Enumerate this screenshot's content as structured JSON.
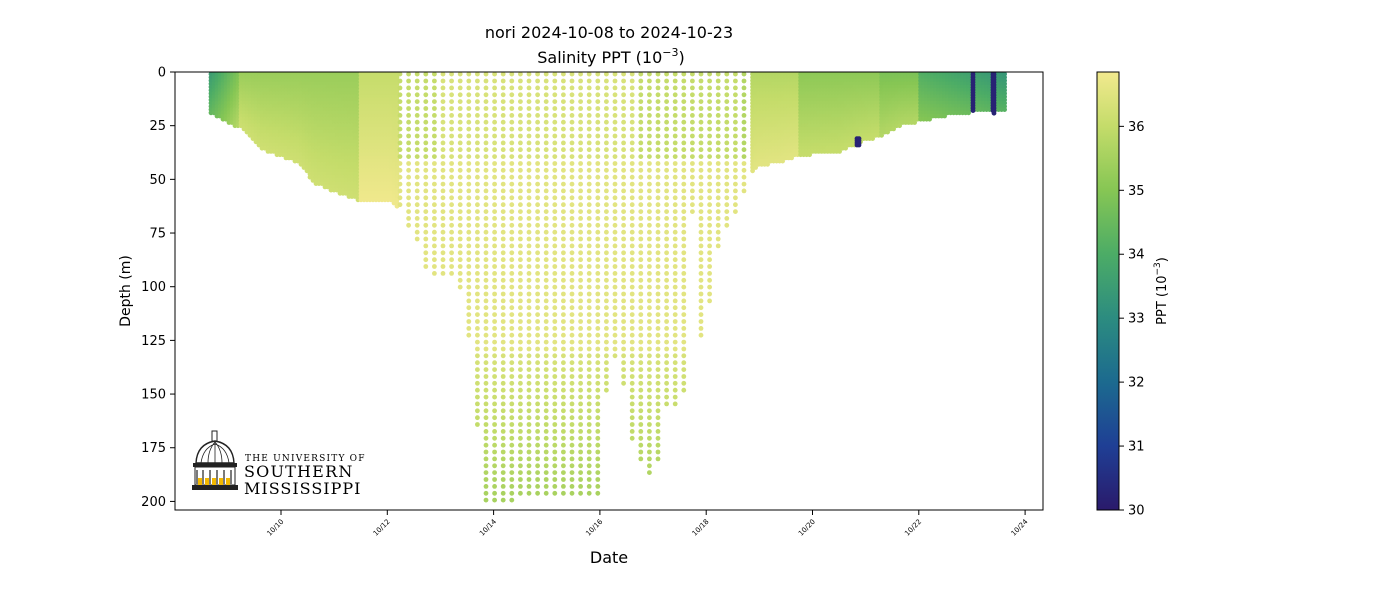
{
  "chart_data": {
    "type": "scatter",
    "title": "nori 2024-10-08 to 2024-10-23",
    "subtitle_prefix": "Salinity PPT (10",
    "subtitle_exp": "−3",
    "subtitle_suffix": ")",
    "xlabel": "Date",
    "ylabel": "Depth (m)",
    "ylim": [
      204,
      0
    ],
    "y_inverted": true,
    "x_ticks": [
      "10/10",
      "10/12",
      "10/14",
      "10/16",
      "10/18",
      "10/20",
      "10/22",
      "10/24"
    ],
    "y_ticks": [
      0,
      25,
      50,
      75,
      100,
      125,
      150,
      175,
      200
    ],
    "grid": false,
    "colorbar": {
      "label_prefix": "PPT (10",
      "label_exp": "−3",
      "label_suffix": ")",
      "range": [
        30,
        36.85
      ],
      "ticks": [
        30,
        31,
        32,
        33,
        34,
        35,
        36
      ],
      "colormap": "haline",
      "colors": [
        "#2a1a6b",
        "#1f3f95",
        "#1c6a8f",
        "#2c8c80",
        "#4cac66",
        "#86c654",
        "#c4dc6a",
        "#f2e98e"
      ]
    },
    "logo": {
      "line1": "THE UNIVERSITY OF",
      "line2": "SOUTHERN",
      "line3": "MISSISSIPPI"
    }
  }
}
